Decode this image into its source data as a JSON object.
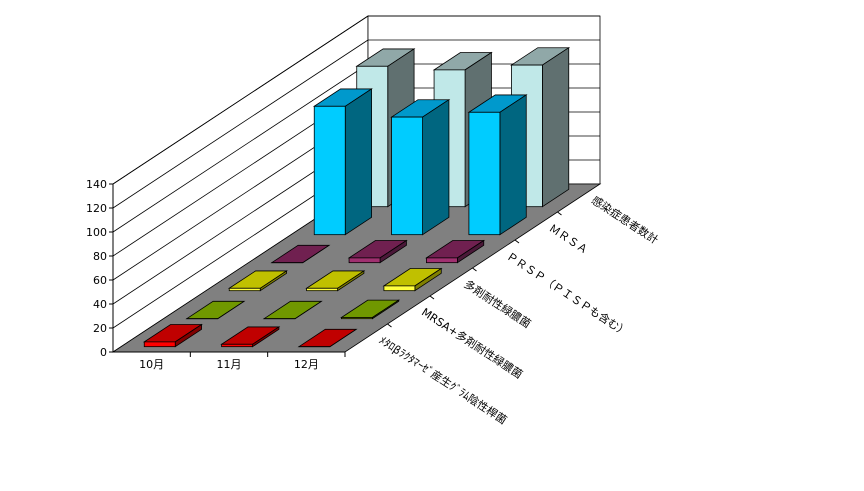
{
  "chart_data": {
    "type": "bar",
    "subtype": "3d-clustered-depth",
    "categories": [
      "10月",
      "11月",
      "12月"
    ],
    "series": [
      {
        "name": "ﾒﾀﾛβﾗｸﾀﾏｰｾﾞ産生ｸﾞﾗﾑ陰性桿菌",
        "values": [
          4,
          2,
          0
        ],
        "colors": {
          "front": "#FF0000",
          "top": "#C00000",
          "side": "#800000"
        }
      },
      {
        "name": "MRSA+多剤耐性緑膿菌",
        "values": [
          0,
          0,
          1
        ],
        "colors": {
          "front": "#A0C000",
          "top": "#709800",
          "side": "#506800"
        }
      },
      {
        "name": "多剤耐性緑膿菌",
        "values": [
          2,
          2,
          4
        ],
        "colors": {
          "front": "#FFFF40",
          "top": "#C0C000",
          "side": "#808000"
        }
      },
      {
        "name": "ＰＲＳＰ（ＰＩＳＰも含む）",
        "values": [
          0,
          4,
          4
        ],
        "colors": {
          "front": "#A03070",
          "top": "#702050",
          "side": "#4A1838"
        }
      },
      {
        "name": "ＭＲＳＡ",
        "values": [
          107,
          98,
          102
        ],
        "colors": {
          "front": "#00CCFF",
          "top": "#0099CC",
          "side": "#006680"
        }
      },
      {
        "name": "感染症患者数計",
        "values": [
          117,
          114,
          118
        ],
        "colors": {
          "front": "#C0E8E8",
          "top": "#90A8A8",
          "side": "#607070"
        }
      }
    ],
    "yticks": [
      0,
      20,
      40,
      60,
      80,
      100,
      120,
      140
    ],
    "ylim": [
      0,
      140
    ],
    "grid": true,
    "floor_color": "#808080",
    "title": "",
    "xlabel": "",
    "ylabel": ""
  }
}
